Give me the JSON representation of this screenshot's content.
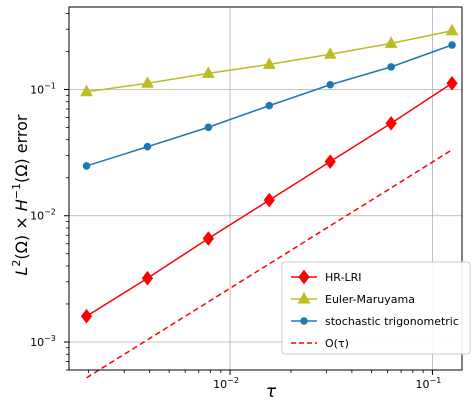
{
  "chart_data": {
    "type": "line",
    "xlabel": "τ",
    "ylabel_parts": {
      "a": "L",
      "a_sup": "2",
      "b": "(Ω) × ",
      "c": "H",
      "c_sup": "−1",
      "d": "(Ω) error"
    },
    "xscale": "log",
    "yscale": "log",
    "xlim": [
      0.0016,
      0.14
    ],
    "ylim": [
      0.0006,
      0.45
    ],
    "x": [
      0.001953125,
      0.00390625,
      0.0078125,
      0.015625,
      0.03125,
      0.0625,
      0.125
    ],
    "x_ticks": [
      {
        "value": 0.01,
        "base": "10",
        "exp": "−2"
      },
      {
        "value": 0.1,
        "base": "10",
        "exp": "−1"
      }
    ],
    "y_ticks": [
      {
        "value": 0.001,
        "base": "10",
        "exp": "−3"
      },
      {
        "value": 0.01,
        "base": "10",
        "exp": "−2"
      },
      {
        "value": 0.1,
        "base": "10",
        "exp": "−1"
      }
    ],
    "grid": true,
    "legend_position": "bottom-right",
    "series": [
      {
        "name": "HR-LRI",
        "color": "#ff0000",
        "marker": "diamond",
        "style": "solid",
        "values": [
          0.0016,
          0.0032,
          0.0066,
          0.0133,
          0.0268,
          0.054,
          0.112
        ]
      },
      {
        "name": "Euler-Maruyama",
        "color": "#bcbd22",
        "marker": "triangle",
        "style": "solid",
        "values": [
          0.096,
          0.112,
          0.134,
          0.158,
          0.19,
          0.232,
          0.292
        ]
      },
      {
        "name": "stochastic trigonometric",
        "color": "#1f77b4",
        "marker": "circle",
        "style": "solid",
        "values": [
          0.0248,
          0.0352,
          0.0502,
          0.0745,
          0.109,
          0.151,
          0.225
        ]
      },
      {
        "name": "O(τ)",
        "color": "#ff0000",
        "marker": "none",
        "style": "dashed",
        "values": [
          0.00052,
          0.00104,
          0.00208,
          0.00416,
          0.00832,
          0.0166,
          0.0333
        ]
      }
    ]
  }
}
